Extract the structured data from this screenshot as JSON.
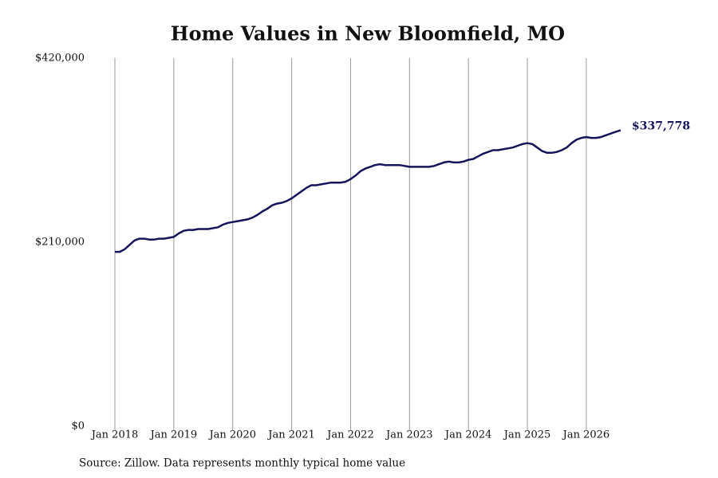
{
  "chart_data": {
    "type": "line",
    "title": "Home Values in New Bloomfield, MO",
    "source": "Source: Zillow. Data represents monthly typical home value",
    "x": [
      "2018-01",
      "2018-02",
      "2018-03",
      "2018-04",
      "2018-05",
      "2018-06",
      "2018-07",
      "2018-08",
      "2018-09",
      "2018-10",
      "2018-11",
      "2018-12",
      "2019-01",
      "2019-02",
      "2019-03",
      "2019-04",
      "2019-05",
      "2019-06",
      "2019-07",
      "2019-08",
      "2019-09",
      "2019-10",
      "2019-11",
      "2019-12",
      "2020-01",
      "2020-02",
      "2020-03",
      "2020-04",
      "2020-05",
      "2020-06",
      "2020-07",
      "2020-08",
      "2020-09",
      "2020-10",
      "2020-11",
      "2020-12",
      "2021-01",
      "2021-02",
      "2021-03",
      "2021-04",
      "2021-05",
      "2021-06",
      "2021-07",
      "2021-08",
      "2021-09",
      "2021-10",
      "2021-11",
      "2021-12",
      "2022-01",
      "2022-02",
      "2022-03",
      "2022-04",
      "2022-05",
      "2022-06",
      "2022-07",
      "2022-08",
      "2022-09",
      "2022-10",
      "2022-11",
      "2022-12",
      "2023-01",
      "2023-02",
      "2023-03",
      "2023-04",
      "2023-05",
      "2023-06",
      "2023-07",
      "2023-08",
      "2023-09",
      "2023-10",
      "2023-11",
      "2023-12",
      "2024-01",
      "2024-02",
      "2024-03",
      "2024-04",
      "2024-05",
      "2024-06",
      "2024-07",
      "2024-08",
      "2024-09",
      "2024-10",
      "2024-11",
      "2024-12",
      "2025-01",
      "2025-02",
      "2025-03",
      "2025-04",
      "2025-05",
      "2025-06",
      "2025-07",
      "2025-08",
      "2025-09",
      "2025-10",
      "2025-11",
      "2025-12",
      "2026-01",
      "2026-02",
      "2026-03",
      "2026-04",
      "2026-05",
      "2026-06",
      "2026-07",
      "2026-08"
    ],
    "series": [
      {
        "name": "Home value",
        "color": "#14145a",
        "values": [
          199000,
          199000,
          202000,
          207000,
          212000,
          214000,
          214000,
          213000,
          213000,
          214000,
          214000,
          215000,
          216000,
          220000,
          223000,
          224000,
          224000,
          225000,
          225000,
          225000,
          226000,
          227000,
          230000,
          232000,
          233000,
          234000,
          235000,
          236000,
          238000,
          241000,
          245000,
          248000,
          252000,
          254000,
          255000,
          257000,
          260000,
          264000,
          268000,
          272000,
          275000,
          275000,
          276000,
          277000,
          278000,
          278000,
          278000,
          279000,
          282000,
          286000,
          291000,
          294000,
          296000,
          298000,
          299000,
          298000,
          298000,
          298000,
          298000,
          297000,
          296000,
          296000,
          296000,
          296000,
          296000,
          297000,
          299000,
          301000,
          302000,
          301000,
          301000,
          302000,
          304000,
          305000,
          308000,
          311000,
          313000,
          315000,
          315000,
          316000,
          317000,
          318000,
          320000,
          322000,
          323000,
          322000,
          318000,
          314000,
          312000,
          312000,
          313000,
          315000,
          318000,
          323000,
          327000,
          329000,
          330000,
          329000,
          329000,
          330000,
          332000,
          334000,
          336000,
          337778
        ],
        "value_labels": [
          null,
          null,
          null,
          null,
          null,
          null,
          null,
          null,
          null,
          null,
          null,
          null,
          null,
          null,
          null,
          null,
          null,
          null,
          null,
          null,
          null,
          null,
          null,
          null,
          null,
          null,
          null,
          null,
          null,
          null,
          null,
          null,
          null,
          null,
          null,
          null,
          null,
          null,
          null,
          null,
          null,
          null,
          null,
          null,
          null,
          null,
          null,
          null,
          null,
          null,
          null,
          null,
          null,
          null,
          null,
          null,
          null,
          null,
          null,
          null,
          null,
          null,
          null,
          null,
          null,
          null,
          null,
          null,
          null,
          null,
          null,
          null,
          null,
          null,
          null,
          null,
          null,
          null,
          null,
          null,
          null,
          null,
          null,
          null,
          null,
          null,
          null,
          null,
          null,
          null,
          null,
          null,
          null,
          null,
          null,
          null,
          null,
          null,
          null,
          null,
          null,
          null,
          null,
          "$337,778"
        ]
      }
    ],
    "xlim": [
      "2018-01",
      "2026-08"
    ],
    "xticks": [
      {
        "value": "2018-01",
        "label": "Jan 2018"
      },
      {
        "value": "2019-01",
        "label": "Jan 2019"
      },
      {
        "value": "2020-01",
        "label": "Jan 2020"
      },
      {
        "value": "2021-01",
        "label": "Jan 2021"
      },
      {
        "value": "2022-01",
        "label": "Jan 2022"
      },
      {
        "value": "2023-01",
        "label": "Jan 2023"
      },
      {
        "value": "2024-01",
        "label": "Jan 2024"
      },
      {
        "value": "2025-01",
        "label": "Jan 2025"
      },
      {
        "value": "2026-01",
        "label": "Jan 2026"
      }
    ],
    "ylim": [
      0,
      420000
    ],
    "yticks": [
      {
        "value": 0,
        "label": "$0"
      },
      {
        "value": 210000,
        "label": "$210,000"
      },
      {
        "value": 420000,
        "label": "$420,000"
      }
    ],
    "grid": "x"
  }
}
